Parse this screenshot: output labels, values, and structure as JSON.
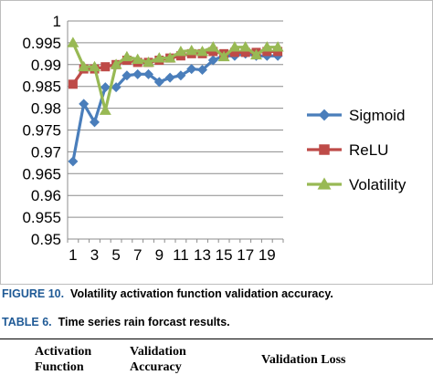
{
  "chart_data": {
    "type": "line",
    "x": [
      1,
      2,
      3,
      4,
      5,
      6,
      7,
      8,
      9,
      10,
      11,
      12,
      13,
      14,
      15,
      16,
      17,
      18,
      19,
      20
    ],
    "tick_labels_x": [
      "1",
      "3",
      "5",
      "7",
      "9",
      "11",
      "13",
      "15",
      "17",
      "19"
    ],
    "ylim": [
      0.95,
      1.0
    ],
    "tick_labels_y": [
      "0.95",
      "0.955",
      "0.96",
      "0.965",
      "0.97",
      "0.975",
      "0.98",
      "0.985",
      "0.99",
      "0.995",
      "1"
    ],
    "grid": "horizontal",
    "legend_position": "right",
    "series": [
      {
        "name": "Sigmoid",
        "color": "#4a7ebb",
        "marker": "diamond",
        "values": [
          0.9678,
          0.981,
          0.9768,
          0.9848,
          0.9848,
          0.9875,
          0.9878,
          0.9878,
          0.986,
          0.987,
          0.9875,
          0.989,
          0.9888,
          0.991,
          0.992,
          0.992,
          0.9925,
          0.992,
          0.992,
          0.992
        ]
      },
      {
        "name": "ReLU",
        "color": "#be4b48",
        "marker": "square",
        "values": [
          0.9855,
          0.989,
          0.989,
          0.9895,
          0.99,
          0.991,
          0.9905,
          0.9905,
          0.991,
          0.9915,
          0.992,
          0.9925,
          0.9925,
          0.993,
          0.9925,
          0.9928,
          0.9928,
          0.9928,
          0.993,
          0.993
        ]
      },
      {
        "name": "Volatility",
        "color": "#98b954",
        "marker": "triangle",
        "values": [
          0.995,
          0.9895,
          0.9895,
          0.9795,
          0.99,
          0.9918,
          0.9912,
          0.9905,
          0.9915,
          0.9915,
          0.993,
          0.9932,
          0.993,
          0.994,
          0.9918,
          0.994,
          0.994,
          0.9922,
          0.994,
          0.994
        ]
      }
    ]
  },
  "figure_caption": {
    "label": "FIGURE 10.",
    "text": "Volatility activation function validation accuracy."
  },
  "table_caption": {
    "label": "TABLE 6.",
    "text": "Time series rain forcast results."
  },
  "table_headers": {
    "col1_line1": "Activation",
    "col1_line2": "Function",
    "col2_line1": "Validation",
    "col2_line2": "Accuracy",
    "col3": "Validation Loss"
  }
}
